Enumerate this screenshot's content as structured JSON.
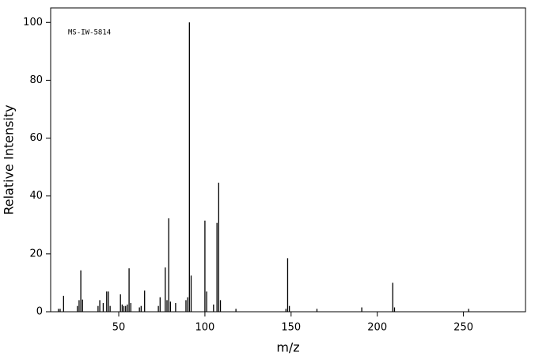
{
  "chart_data": {
    "type": "stick",
    "annotation": "MS-IW-5814",
    "x_label": "m/z",
    "y_label": "Relative Intensity",
    "x": [
      15,
      16,
      18,
      26,
      27,
      28,
      29,
      38,
      39,
      41,
      43,
      44,
      45,
      51,
      52,
      53,
      54,
      55,
      56,
      57,
      62,
      63,
      65,
      73,
      74,
      77,
      78,
      79,
      80,
      83,
      89,
      90,
      91,
      92,
      100,
      101,
      105,
      107,
      108,
      109,
      118,
      147,
      148,
      149,
      165,
      191,
      209,
      210,
      253
    ],
    "values": [
      1,
      1,
      5.5,
      2,
      4,
      14.3,
      4.2,
      2,
      4,
      3,
      7,
      7,
      2,
      6,
      2.5,
      2,
      2,
      2.5,
      15,
      3,
      1.5,
      2,
      7.3,
      2,
      5,
      15.3,
      4,
      32.3,
      3.5,
      3,
      4,
      5,
      100,
      12.5,
      31.5,
      7,
      2.5,
      30.7,
      44.6,
      4,
      1,
      1,
      18.5,
      2,
      1,
      1.5,
      10,
      1.5,
      1
    ],
    "color": "#000000",
    "xlim": [
      10.5,
      286
    ],
    "ylim": [
      0,
      105
    ],
    "xticks": [
      50,
      100,
      150,
      200,
      250
    ],
    "yticks": [
      0,
      20,
      40,
      60,
      80,
      100
    ]
  }
}
